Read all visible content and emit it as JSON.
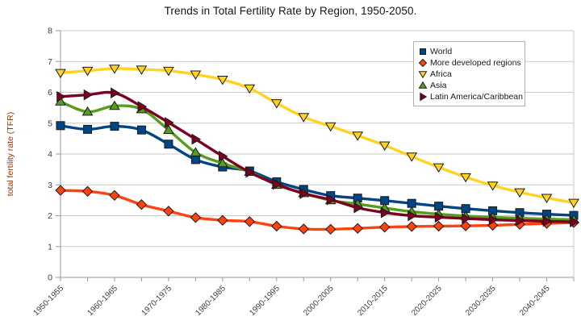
{
  "chart_data": {
    "type": "line",
    "title": "Trends in Total Fertility Rate by Region, 1950-2050.",
    "subtitle": "",
    "xlabel": "",
    "ylabel": "total fertility rate (TFR)",
    "ylim": [
      0,
      8
    ],
    "y_ticks": [
      0,
      1,
      2,
      3,
      4,
      5,
      6,
      7,
      8
    ],
    "grid": true,
    "line_smoothing": true,
    "legend_position": "top-right-inside",
    "categories": [
      "1950-1955",
      "1955-1960",
      "1960-1965",
      "1965-1970",
      "1970-1975",
      "1975-1980",
      "1980-1985",
      "1985-1990",
      "1990-1995",
      "1995-2000",
      "2000-2005",
      "2005-2010",
      "2010-2015",
      "2015-2020",
      "2020-2025",
      "2025-2030",
      "2030-2035",
      "2035-2040",
      "2040-2045",
      "2045-2050"
    ],
    "x_tick_labels": [
      "1950-1955",
      "1960-1965",
      "1970-1975",
      "1980-1985",
      "1990-1995",
      "2000-2005",
      "2010-2015",
      "2020-2025",
      "2030-2035",
      "2040-2045"
    ],
    "series": [
      {
        "name": "World",
        "color": "#004586",
        "marker": "square",
        "values": [
          4.92,
          4.8,
          4.9,
          4.78,
          4.32,
          3.82,
          3.58,
          3.45,
          3.1,
          2.85,
          2.65,
          2.57,
          2.49,
          2.4,
          2.31,
          2.23,
          2.16,
          2.1,
          2.05,
          2.01
        ]
      },
      {
        "name": "More developed regions",
        "color": "#FF420E",
        "marker": "diamond",
        "values": [
          2.82,
          2.79,
          2.66,
          2.36,
          2.15,
          1.94,
          1.85,
          1.81,
          1.66,
          1.57,
          1.56,
          1.59,
          1.63,
          1.65,
          1.66,
          1.67,
          1.69,
          1.72,
          1.75,
          1.78
        ]
      },
      {
        "name": "Africa",
        "color": "#FFD320",
        "marker": "triangle-down",
        "values": [
          6.63,
          6.7,
          6.77,
          6.74,
          6.7,
          6.58,
          6.41,
          6.13,
          5.65,
          5.2,
          4.9,
          4.6,
          4.28,
          3.92,
          3.57,
          3.25,
          2.98,
          2.76,
          2.58,
          2.42
        ]
      },
      {
        "name": "Asia",
        "color": "#579D1C",
        "marker": "triangle-up",
        "values": [
          5.7,
          5.37,
          5.56,
          5.45,
          4.78,
          4.05,
          3.7,
          3.42,
          3.0,
          2.73,
          2.5,
          2.38,
          2.25,
          2.13,
          2.05,
          1.99,
          1.95,
          1.92,
          1.89,
          1.87
        ]
      },
      {
        "name": "Latin America/Caribbean",
        "color": "#7E0021",
        "marker": "triangle-right",
        "values": [
          5.86,
          5.92,
          5.98,
          5.54,
          5.02,
          4.48,
          3.93,
          3.41,
          3.02,
          2.72,
          2.52,
          2.26,
          2.1,
          2.0,
          1.95,
          1.91,
          1.87,
          1.84,
          1.82,
          1.8
        ]
      }
    ],
    "palette": {
      "grid_line": "#c9c9c9",
      "axis_line": "#9a9a9a",
      "tick_label": "#3d3d3d",
      "title_text": "#141414",
      "y_axis_title_text": "#993300",
      "legend_border": "#b0b0b0",
      "marker_outline": "#1b1b1b"
    }
  }
}
